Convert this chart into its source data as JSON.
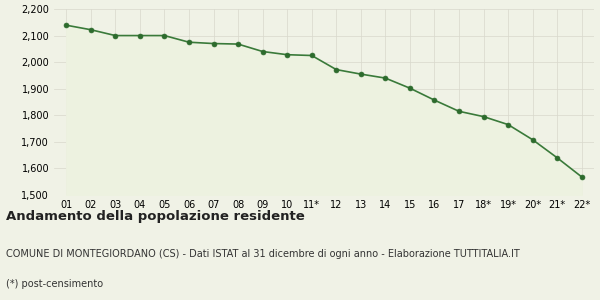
{
  "x_labels": [
    "01",
    "02",
    "03",
    "04",
    "05",
    "06",
    "07",
    "08",
    "09",
    "10",
    "11*",
    "12",
    "13",
    "14",
    "15",
    "16",
    "17",
    "18*",
    "19*",
    "20*",
    "21*",
    "22*"
  ],
  "values": [
    2139,
    2122,
    2100,
    2100,
    2100,
    2075,
    2070,
    2068,
    2040,
    2028,
    2025,
    1972,
    1955,
    1940,
    1902,
    1857,
    1815,
    1795,
    1765,
    1708,
    1640,
    1568
  ],
  "ylim": [
    1500,
    2200
  ],
  "yticks": [
    1500,
    1600,
    1700,
    1800,
    1900,
    2000,
    2100,
    2200
  ],
  "line_color": "#3a7a3a",
  "fill_color": "#edf2e0",
  "marker_color": "#2d6b2d",
  "background_color": "#f0f2e6",
  "grid_color": "#d8d8cc",
  "fig_facecolor": "#f0f2e6",
  "title": "Andamento della popolazione residente",
  "subtitle": "COMUNE DI MONTEGIORDANO (CS) - Dati ISTAT al 31 dicembre di ogni anno - Elaborazione TUTTITALIA.IT",
  "footnote": "(*) post-censimento",
  "title_fontsize": 9.5,
  "subtitle_fontsize": 7,
  "footnote_fontsize": 7,
  "tick_fontsize": 7
}
